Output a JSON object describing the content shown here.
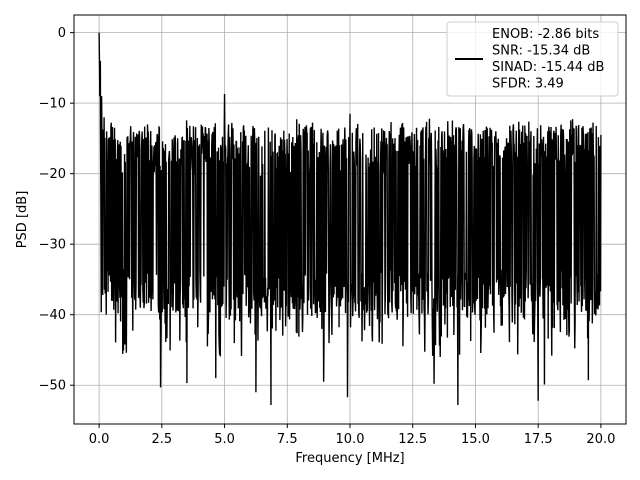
{
  "chart_data": {
    "type": "line",
    "title": "",
    "xlabel": "Frequency [MHz]",
    "ylabel": "PSD [dB]",
    "xlim": [
      -1.0,
      21.0
    ],
    "ylim": [
      -55.5,
      2.5
    ],
    "x_ticks": [
      0.0,
      2.5,
      5.0,
      7.5,
      10.0,
      12.5,
      15.0,
      17.5,
      20.0
    ],
    "x_tick_labels": [
      "0.0",
      "2.5",
      "5.0",
      "7.5",
      "10.0",
      "12.5",
      "15.0",
      "17.5",
      "20.0"
    ],
    "y_ticks": [
      0,
      -10,
      -20,
      -30,
      -40,
      -50
    ],
    "y_tick_labels": [
      "0",
      "−10",
      "−20",
      "−30",
      "−40",
      "−50"
    ],
    "grid": true,
    "legend_position": "top-right",
    "series": [
      {
        "color": "#000000",
        "peaks": [
          {
            "x": 0.0,
            "y": 0.0
          },
          {
            "x": 0.05,
            "y": -4.0
          },
          {
            "x": 0.1,
            "y": -9.0
          },
          {
            "x": 0.2,
            "y": -12.0
          },
          {
            "x": 0.3,
            "y": -14.0
          },
          {
            "x": 5.0,
            "y": -8.7
          },
          {
            "x": 10.0,
            "y": -11.5
          },
          {
            "x": 1.9,
            "y": -15.0
          },
          {
            "x": 11.7,
            "y": -15.0
          }
        ],
        "dips": [
          {
            "x": 2.45,
            "y": -50.3
          },
          {
            "x": 3.5,
            "y": -49.7
          },
          {
            "x": 4.65,
            "y": -49.0
          },
          {
            "x": 6.25,
            "y": -51.0
          },
          {
            "x": 6.85,
            "y": -52.8
          },
          {
            "x": 8.95,
            "y": -49.5
          },
          {
            "x": 9.9,
            "y": -51.7
          },
          {
            "x": 13.35,
            "y": -49.8
          },
          {
            "x": 14.3,
            "y": -52.8
          },
          {
            "x": 17.5,
            "y": -52.2
          },
          {
            "x": 17.75,
            "y": -49.9
          },
          {
            "x": 19.5,
            "y": -49.3
          }
        ],
        "band_upper_db": -15,
        "band_lower_db": -38,
        "band_mean_db": -26
      }
    ],
    "legend_lines": [
      "ENOB: -2.86 bits",
      "SNR: -15.34 dB",
      "SINAD: -15.44 dB",
      "SFDR: 3.49"
    ]
  }
}
